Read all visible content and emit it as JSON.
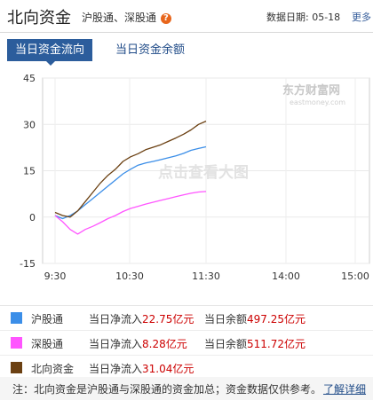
{
  "header": {
    "title": "北向资金",
    "sub_links": [
      "沪股通",
      "深股通"
    ],
    "sub_separator": "、",
    "help_icon": "question-icon",
    "date_label": "数据日期:",
    "date_value": "05-18",
    "more_label": "更多"
  },
  "tabs": [
    {
      "label": "当日资金流向",
      "active": true
    },
    {
      "label": "当日资金余额",
      "active": false
    }
  ],
  "chart_data": {
    "type": "line",
    "y_ticks": [
      "45",
      "30",
      "15",
      "0",
      "-15"
    ],
    "x_ticks": [
      "9:30",
      "10:30",
      "11:30",
      "14:00",
      "15:00"
    ],
    "ylim": [
      -15,
      45
    ],
    "grid": true,
    "watermark_text": "点击查看大图",
    "brand_watermark": "东方财富网",
    "brand_watermark_sub": "eastmoney.com",
    "series": [
      {
        "name": "沪股通",
        "color": "#3b8ee8",
        "points": [
          [
            0,
            0.5
          ],
          [
            5,
            -0.5
          ],
          [
            10,
            0.5
          ],
          [
            15,
            2
          ],
          [
            20,
            4
          ],
          [
            25,
            6
          ],
          [
            30,
            8
          ],
          [
            35,
            10
          ],
          [
            40,
            12
          ],
          [
            45,
            14
          ],
          [
            50,
            15.5
          ],
          [
            55,
            16.8
          ],
          [
            60,
            17.5
          ],
          [
            65,
            18
          ],
          [
            70,
            18.6
          ],
          [
            75,
            19.2
          ],
          [
            80,
            19.8
          ],
          [
            85,
            20.6
          ],
          [
            90,
            21.6
          ],
          [
            95,
            22.2
          ],
          [
            100,
            22.75
          ]
        ]
      },
      {
        "name": "深股通",
        "color": "#ff55ff",
        "points": [
          [
            0,
            0.5
          ],
          [
            5,
            -1.5
          ],
          [
            10,
            -4
          ],
          [
            15,
            -5.5
          ],
          [
            20,
            -4
          ],
          [
            25,
            -3
          ],
          [
            30,
            -1.8
          ],
          [
            35,
            -0.5
          ],
          [
            40,
            0.5
          ],
          [
            45,
            1.8
          ],
          [
            50,
            2.8
          ],
          [
            55,
            3.5
          ],
          [
            60,
            4.2
          ],
          [
            65,
            4.8
          ],
          [
            70,
            5.4
          ],
          [
            75,
            6
          ],
          [
            80,
            6.6
          ],
          [
            85,
            7.2
          ],
          [
            90,
            7.7
          ],
          [
            95,
            8.1
          ],
          [
            100,
            8.28
          ]
        ]
      },
      {
        "name": "北向资金",
        "color": "#6b4012",
        "points": [
          [
            0,
            1.5
          ],
          [
            5,
            0.5
          ],
          [
            10,
            0
          ],
          [
            15,
            2
          ],
          [
            20,
            5
          ],
          [
            25,
            8
          ],
          [
            30,
            11
          ],
          [
            35,
            13.5
          ],
          [
            40,
            15.5
          ],
          [
            45,
            18
          ],
          [
            50,
            19.5
          ],
          [
            55,
            20.5
          ],
          [
            60,
            21.8
          ],
          [
            65,
            22.6
          ],
          [
            70,
            23.4
          ],
          [
            75,
            24.5
          ],
          [
            80,
            25.6
          ],
          [
            85,
            26.8
          ],
          [
            90,
            28.2
          ],
          [
            95,
            30
          ],
          [
            100,
            31.04
          ]
        ]
      }
    ]
  },
  "legend": {
    "rows": [
      {
        "name": "沪股通",
        "color": "#3b8ee8",
        "inflow_label": "当日净流入",
        "inflow_value": "22.75亿元",
        "balance_label": "当日余额",
        "balance_value": "497.25亿元"
      },
      {
        "name": "深股通",
        "color": "#ff55ff",
        "inflow_label": "当日净流入",
        "inflow_value": "8.28亿元",
        "balance_label": "当日余额",
        "balance_value": "511.72亿元"
      },
      {
        "name": "北向资金",
        "color": "#6b4012",
        "inflow_label": "当日净流入",
        "inflow_value": "31.04亿元"
      }
    ]
  },
  "note": {
    "text": "注：北向资金是沪股通与深股通的资金加总；资金数据仅供参考。",
    "link": "了解详细"
  }
}
